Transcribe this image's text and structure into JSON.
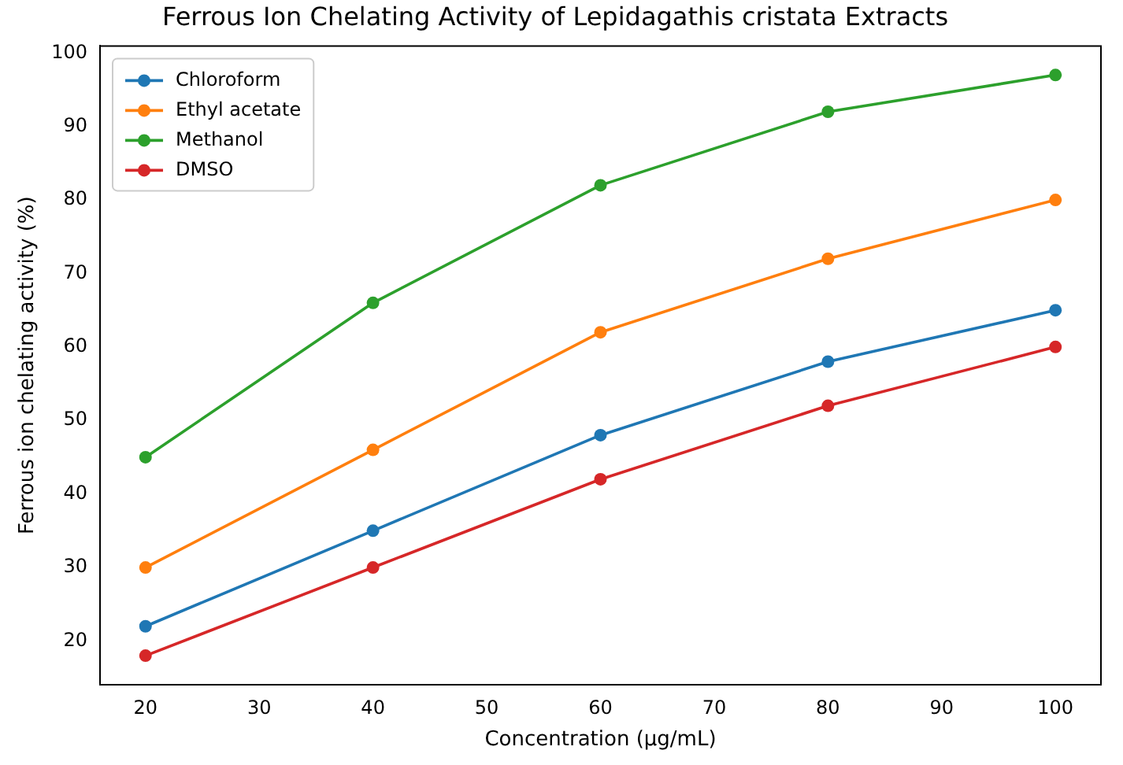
{
  "chart_data": {
    "type": "line",
    "title": "Ferrous Ion Chelating Activity of Lepidagathis cristata Extracts",
    "xlabel": "Concentration (µg/mL)",
    "ylabel": "Ferrous ion chelating activity (%)",
    "x": [
      20,
      40,
      60,
      80,
      100
    ],
    "series": [
      {
        "name": "Chloroform",
        "color": "#1f77b4",
        "values": [
          22,
          35,
          48,
          58,
          65
        ]
      },
      {
        "name": "Ethyl acetate",
        "color": "#ff7f0e",
        "values": [
          30,
          46,
          62,
          72,
          80
        ]
      },
      {
        "name": "Methanol",
        "color": "#2ca02c",
        "values": [
          45,
          66,
          82,
          92,
          97
        ]
      },
      {
        "name": "DMSO",
        "color": "#d62728",
        "values": [
          18,
          30,
          42,
          52,
          60
        ]
      }
    ],
    "xlim": [
      16,
      104
    ],
    "xticks": [
      20,
      30,
      40,
      50,
      60,
      70,
      80,
      90,
      100
    ],
    "ylim": [
      14.05,
      100.95
    ],
    "yticks": [
      20,
      30,
      40,
      50,
      60,
      70,
      80,
      90,
      100
    ],
    "legend": "top left",
    "marker": "circle",
    "line_style": "solid",
    "grid": false
  }
}
